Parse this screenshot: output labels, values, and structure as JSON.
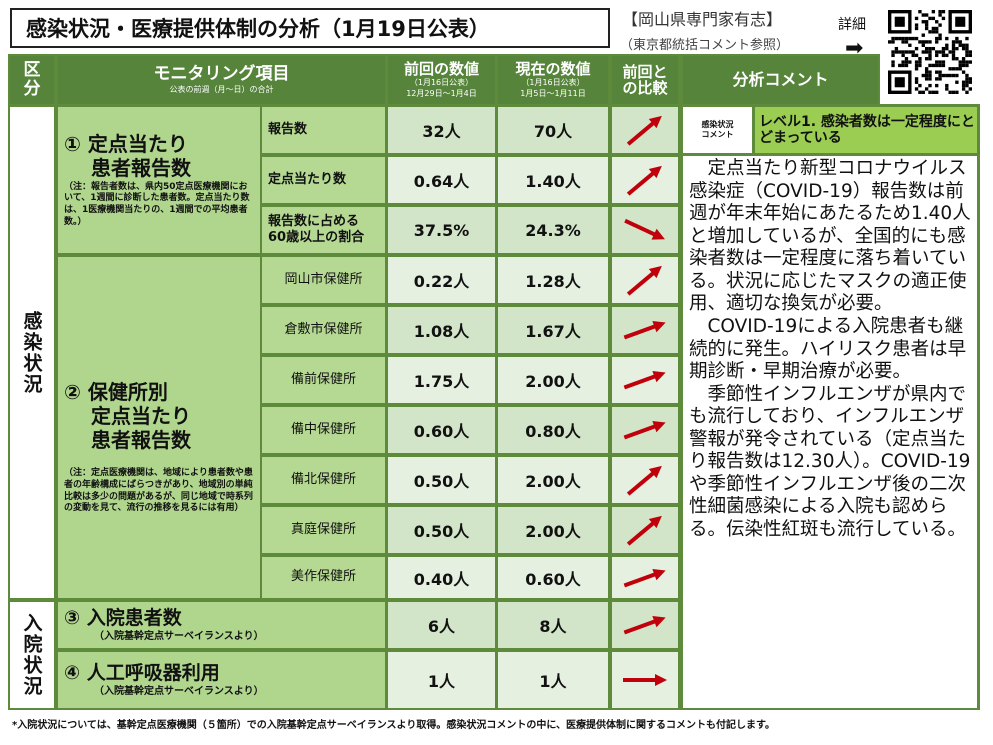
{
  "title": "感染状況・医療提供体制の分析（1月19日公表）",
  "org": "【岡山県専門家有志】",
  "org_note": "（東京都統括コメント参照）",
  "detail_label": "詳細",
  "detail_arrow": "➡",
  "colors": {
    "header_green": "#55843a",
    "border_green": "#5e8a3c",
    "cell_green": "#b0d68e",
    "level_green": "#9acd52",
    "arrow_red": "#c0000a"
  },
  "header": {
    "kubun": "区分",
    "item": "モニタリング項目",
    "item_sub": "公表の前週（月～日）の合計",
    "prev": "前回の数値",
    "prev_sub1": "（1月16日公表）",
    "prev_sub2": "12月29日～1月4日",
    "curr": "現在の数値",
    "curr_sub1": "（1月16日公表）",
    "curr_sub2": "1月5日～1月11日",
    "compare": "前回との比較",
    "comment": "分析コメント"
  },
  "sections": [
    {
      "label": "感染状況"
    },
    {
      "label": "入院状況"
    }
  ],
  "groups": [
    {
      "title": "① 定点当たり\n　 患者報告数",
      "note": "（注：報告者数は、県内50定点医療機関において、1週間に診断した患者数。定点当たり数は、1医療機関当たりの、1週間での平均患者数。）"
    },
    {
      "title": "② 保健所別\n　 定点当たり\n　 患者報告数",
      "note": "（注：定点医療機関は、地域により患者数や患者の年齢構成にばらつきがあり、地域別の単純比較は多少の問題があるが、同じ地域で時系列の変動を見て、流行の推移を見るには有用）"
    },
    {
      "title": "③ 入院患者数",
      "note": "（入院基幹定点サーベイランスより）"
    },
    {
      "title": "④ 人工呼吸器利用",
      "note": "（入院基幹定点サーベイランスより）"
    }
  ],
  "rows": [
    {
      "item": "報告数",
      "prev": "32人",
      "curr": "70人",
      "trend": "up-steep"
    },
    {
      "item": "定点当たり数",
      "prev": "0.64人",
      "curr": "1.40人",
      "trend": "up-steep"
    },
    {
      "item": "報告数に占める\n60歳以上の割合",
      "prev": "37.5%",
      "curr": "24.3%",
      "trend": "down"
    },
    {
      "item": "岡山市保健所",
      "prev": "0.22人",
      "curr": "1.28人",
      "trend": "up-steep"
    },
    {
      "item": "倉敷市保健所",
      "prev": "1.08人",
      "curr": "1.67人",
      "trend": "up"
    },
    {
      "item": "備前保健所",
      "prev": "1.75人",
      "curr": "2.00人",
      "trend": "up"
    },
    {
      "item": "備中保健所",
      "prev": "0.60人",
      "curr": "0.80人",
      "trend": "up"
    },
    {
      "item": "備北保健所",
      "prev": "0.50人",
      "curr": "2.00人",
      "trend": "up-steep"
    },
    {
      "item": "真庭保健所",
      "prev": "0.50人",
      "curr": "2.00人",
      "trend": "up-steep"
    },
    {
      "item": "美作保健所",
      "prev": "0.40人",
      "curr": "0.60人",
      "trend": "up"
    },
    {
      "item": "",
      "prev": "6人",
      "curr": "8人",
      "trend": "up"
    },
    {
      "item": "",
      "prev": "1人",
      "curr": "1人",
      "trend": "flat"
    }
  ],
  "comment": {
    "label": "感染状況\nコメント",
    "level": "レベル1. 感染者数は一定程度にとどまっている",
    "paragraphs": [
      "　定点当たり新型コロナウイルス感染症（COVID-19）報告数は前週が年末年始にあたるため1.40人と増加しているが、全国的にも感染者数は一定程度に落ち着いている。状況に応じたマスクの適正使用、適切な換気が必要。",
      "　COVID-19による入院患者も継続的に発生。ハイリスク患者は早期診断・早期治療が必要。",
      "　季節性インフルエンザが県内でも流行しており、インフルエンザ警報が発令されている（定点当たり報告数は12.30人）。COVID-19や季節性インフルエンザ後の二次性細菌感染による入院も認めらる。伝染性紅斑も流行している。"
    ]
  },
  "footer": "*入院状況については、基幹定点医療機関（５箇所）での入院基幹定点サーベイランスより取得。感染状況コメントの中に、医療提供体制に関するコメントも付記します。"
}
